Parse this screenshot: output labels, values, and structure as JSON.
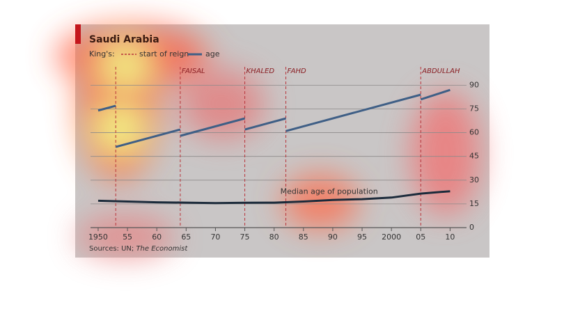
{
  "chart_data": {
    "type": "line",
    "title": "Saudi Arabia",
    "legend_prefix": "King's:",
    "reigns": {
      "name": "start of reign",
      "color": "#b8333a",
      "x": [
        1953,
        1964,
        1975,
        1982,
        2005
      ],
      "labels": [
        null,
        "FAISAL",
        "KHALED",
        "FAHD",
        "ABDULLAH"
      ]
    },
    "series": [
      {
        "name": "age",
        "color": "#3f5f86",
        "x": [
          1950,
          1953,
          1953,
          1953,
          1964,
          1964,
          1964,
          1975,
          1975,
          1975,
          1982,
          1982,
          1982,
          2005,
          2005,
          2005,
          2010
        ],
        "values": [
          74,
          77,
          null,
          51,
          62,
          null,
          58,
          69,
          null,
          62,
          69,
          null,
          61,
          84,
          null,
          81,
          87
        ]
      },
      {
        "name": "Median age of population",
        "color": "#1c2b3b",
        "x": [
          1950,
          1955,
          1960,
          1965,
          1970,
          1975,
          1980,
          1985,
          1990,
          1995,
          2000,
          2005,
          2010
        ],
        "values": [
          17,
          16.5,
          16,
          15.8,
          15.5,
          15.7,
          15.8,
          16.5,
          17.5,
          18,
          19,
          21.5,
          23
        ]
      }
    ],
    "xlim": [
      1948.7,
      2012.8
    ],
    "xticks": [
      1950,
      {
        "value": 1955,
        "label": "55"
      },
      {
        "value": 1960,
        "label": "60"
      },
      {
        "value": 1965,
        "label": "65"
      },
      {
        "value": 1970,
        "label": "70"
      },
      {
        "value": 1975,
        "label": "75"
      },
      {
        "value": 1980,
        "label": "80"
      },
      {
        "value": 1985,
        "label": "85"
      },
      {
        "value": 1990,
        "label": "90"
      },
      {
        "value": 1995,
        "label": "95"
      },
      2000,
      {
        "value": 2005,
        "label": "05"
      },
      {
        "value": 2010,
        "label": "10"
      }
    ],
    "ylim": [
      0,
      95
    ],
    "yticks": [
      0,
      15,
      30,
      45,
      60,
      75,
      90
    ],
    "grid": true,
    "source_prefix": "Sources: UN; ",
    "source_name": "The Economist"
  }
}
